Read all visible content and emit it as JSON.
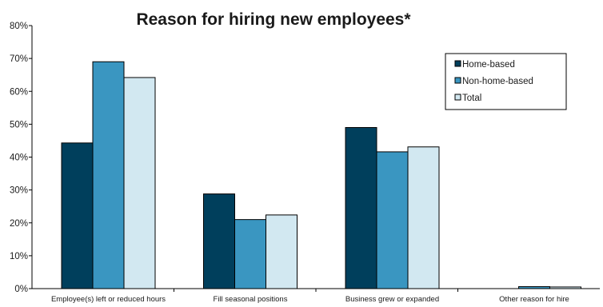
{
  "chart_data": {
    "type": "bar",
    "title": "Reason for hiring new employees*",
    "xlabel": "",
    "ylabel": "",
    "categories": [
      "Employee(s) left or reduced hours",
      "Fill seasonal positions",
      "Business grew or expanded",
      "Other reason for hire"
    ],
    "series": [
      {
        "name": "Home-based",
        "color": "#003f5c",
        "values": [
          44.3,
          28.8,
          49.0,
          0.0
        ]
      },
      {
        "name": "Non-home-based",
        "color": "#3a96c1",
        "values": [
          69.0,
          21.0,
          41.6,
          0.6
        ]
      },
      {
        "name": "Total",
        "color": "#d2e8f1",
        "values": [
          64.2,
          22.4,
          43.1,
          0.5
        ]
      }
    ],
    "ylim": [
      0,
      80
    ],
    "yticks": [
      "0%",
      "10%",
      "20%",
      "30%",
      "40%",
      "50%",
      "60%",
      "70%",
      "80%"
    ],
    "grid": false,
    "legend_position": "top-right"
  }
}
